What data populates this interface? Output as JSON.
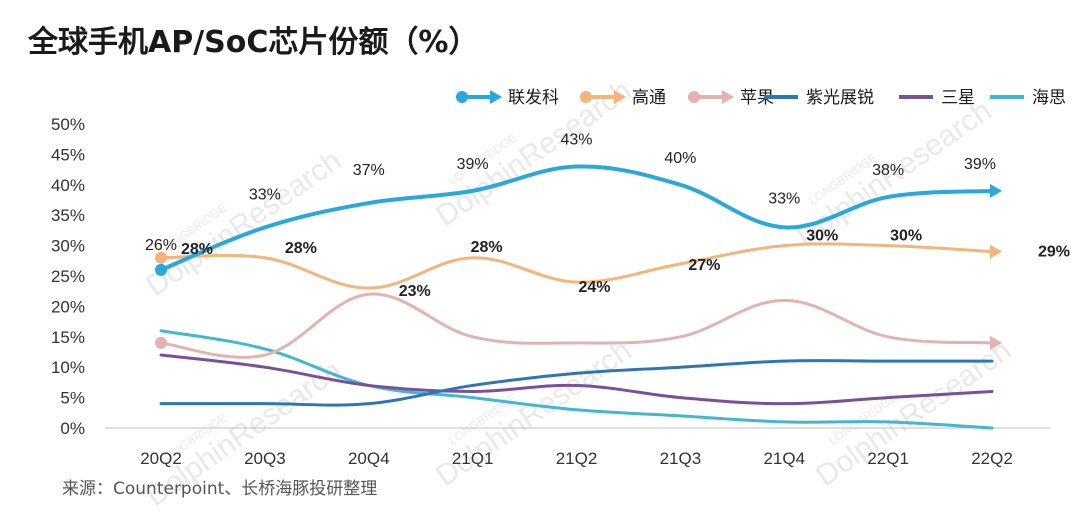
{
  "chart_data": {
    "type": "line",
    "title": "全球手机AP/SoC芯片份额（%）",
    "categories": [
      "20Q2",
      "20Q3",
      "20Q4",
      "21Q1",
      "21Q2",
      "21Q3",
      "21Q4",
      "22Q1",
      "22Q2"
    ],
    "ylim": [
      0,
      50
    ],
    "yticks": [
      "0%",
      "5%",
      "10%",
      "15%",
      "20%",
      "25%",
      "30%",
      "35%",
      "40%",
      "45%",
      "50%"
    ],
    "series": [
      {
        "name": "联发科",
        "color": "#29a8e0",
        "values": [
          26,
          33,
          37,
          39,
          43,
          40,
          33,
          38,
          39
        ],
        "labels": [
          "26%",
          "33%",
          "37%",
          "39%",
          "43%",
          "40%",
          "33%",
          "38%",
          "39%"
        ]
      },
      {
        "name": "高通",
        "color": "#f5b57a",
        "values": [
          28,
          28,
          23,
          28,
          24,
          27,
          30,
          30,
          29
        ],
        "labels": [
          "28%",
          "28%",
          "23%",
          "28%",
          "24%",
          "27%",
          "30%",
          "30%",
          "29%"
        ]
      },
      {
        "name": "苹果",
        "color": "#e4b3ad",
        "values": [
          14,
          12,
          22,
          15,
          14,
          15,
          21,
          15,
          14
        ]
      },
      {
        "name": "紫光展锐",
        "color": "#2e75b6",
        "values": [
          4,
          4,
          4,
          7,
          9,
          10,
          11,
          11,
          11
        ]
      },
      {
        "name": "三星",
        "color": "#7a4f9c",
        "values": [
          12,
          10,
          7,
          6,
          7,
          5,
          4,
          5,
          6
        ]
      },
      {
        "name": "海思",
        "color": "#40b8d4",
        "values": [
          16,
          13,
          7,
          5,
          3,
          2,
          1,
          1,
          0
        ]
      }
    ],
    "source": "来源：Counterpoint、长桥海豚投研整理",
    "watermark_brand": "LONGBRIDGE",
    "watermark_text": "DolphinResearch"
  }
}
